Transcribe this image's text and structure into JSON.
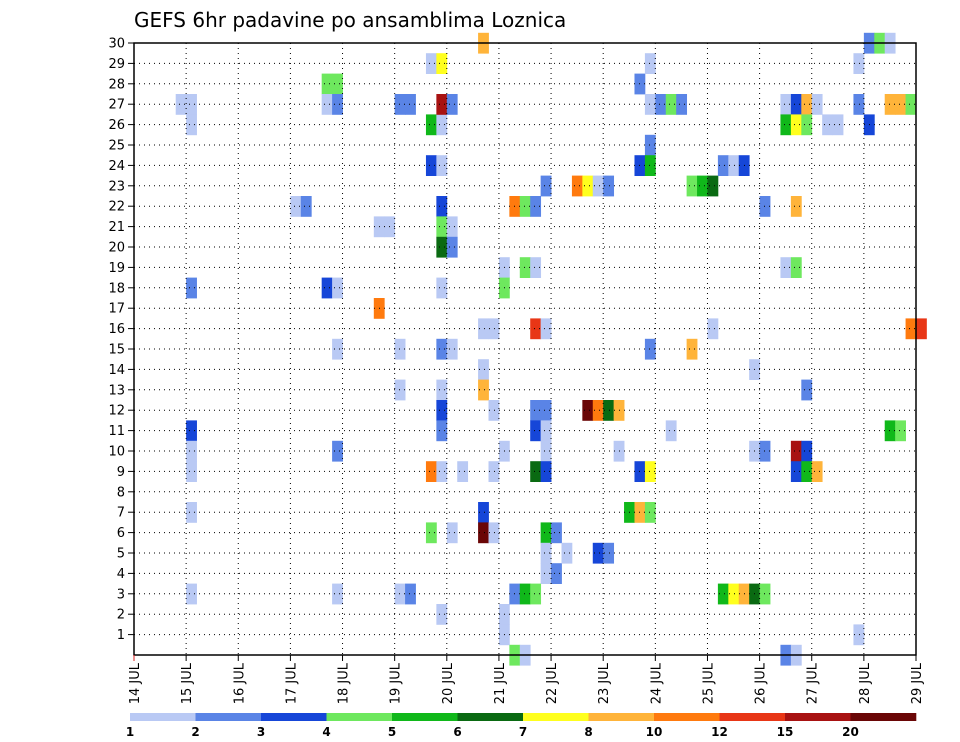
{
  "chart_data": {
    "type": "heatmap",
    "title": "GEFS 6hr padavine po ansamblima Loznica",
    "xlabel": "",
    "ylabel": "",
    "x_ticks": [
      "14 JUL",
      "15 JUL",
      "16 JUL",
      "17 JUL",
      "18 JUL",
      "19 JUL",
      "20 JUL",
      "21 JUL",
      "22 JUL",
      "23 JUL",
      "24 JUL",
      "25 JUL",
      "26 JUL",
      "27 JUL",
      "28 JUL",
      "29 JUL"
    ],
    "y_ticks": [
      "1",
      "2",
      "3",
      "4",
      "5",
      "6",
      "7",
      "8",
      "9",
      "10",
      "11",
      "12",
      "13",
      "14",
      "15",
      "16",
      "17",
      "18",
      "19",
      "20",
      "21",
      "22",
      "23",
      "24",
      "25",
      "26",
      "27",
      "28",
      "29",
      "30"
    ],
    "ylim": [
      0,
      30
    ],
    "grid": true,
    "legend_levels": [
      "1",
      "2",
      "3",
      "4",
      "5",
      "6",
      "7",
      "8",
      "10",
      "12",
      "15",
      "20"
    ],
    "legend_colors": [
      "#b9c9f4",
      "#5a84e6",
      "#1646d8",
      "#6ee85e",
      "#10b81a",
      "#0a6a12",
      "#ffff1e",
      "#ffb43a",
      "#ff7a0e",
      "#e83616",
      "#a81212",
      "#6a0606"
    ],
    "cells": [
      [
        0.8,
        27,
        1
      ],
      [
        1.0,
        27,
        1
      ],
      [
        1.0,
        26,
        1
      ],
      [
        1.0,
        18,
        2
      ],
      [
        1.0,
        11,
        3
      ],
      [
        1.0,
        10,
        1
      ],
      [
        1.0,
        9,
        1
      ],
      [
        1.0,
        7,
        1
      ],
      [
        1.0,
        3,
        1
      ],
      [
        3.0,
        22,
        1
      ],
      [
        3.2,
        22,
        2
      ],
      [
        3.6,
        28,
        4
      ],
      [
        3.8,
        28,
        4
      ],
      [
        3.6,
        27,
        1
      ],
      [
        3.8,
        27,
        2
      ],
      [
        3.6,
        18,
        3
      ],
      [
        3.8,
        18,
        1
      ],
      [
        3.8,
        15,
        1
      ],
      [
        3.8,
        10,
        2
      ],
      [
        3.8,
        3,
        1
      ],
      [
        4.6,
        21,
        1
      ],
      [
        4.8,
        21,
        1
      ],
      [
        4.6,
        17,
        9
      ],
      [
        5.0,
        27,
        2
      ],
      [
        5.2,
        27,
        2
      ],
      [
        5.0,
        15,
        1
      ],
      [
        5.0,
        13,
        1
      ],
      [
        5.0,
        3,
        1
      ],
      [
        5.2,
        3,
        2
      ],
      [
        5.6,
        29,
        1
      ],
      [
        5.8,
        29,
        7
      ],
      [
        5.6,
        26,
        5
      ],
      [
        5.8,
        26,
        1
      ],
      [
        5.6,
        24,
        3
      ],
      [
        5.8,
        24,
        1
      ],
      [
        5.8,
        27,
        11
      ],
      [
        6.0,
        27,
        2
      ],
      [
        5.8,
        22,
        3
      ],
      [
        5.8,
        21,
        4
      ],
      [
        6.0,
        21,
        1
      ],
      [
        5.8,
        20,
        6
      ],
      [
        6.0,
        20,
        2
      ],
      [
        5.8,
        18,
        1
      ],
      [
        5.8,
        15,
        2
      ],
      [
        6.0,
        15,
        1
      ],
      [
        5.8,
        13,
        1
      ],
      [
        5.8,
        12,
        3
      ],
      [
        5.8,
        11,
        2
      ],
      [
        5.6,
        9,
        9
      ],
      [
        5.8,
        9,
        1
      ],
      [
        6.2,
        9,
        1
      ],
      [
        5.6,
        6,
        4
      ],
      [
        6.0,
        6,
        1
      ],
      [
        5.8,
        2,
        1
      ],
      [
        6.6,
        30,
        8
      ],
      [
        6.6,
        16,
        1
      ],
      [
        6.8,
        16,
        1
      ],
      [
        6.6,
        14,
        1
      ],
      [
        6.6,
        13,
        8
      ],
      [
        6.6,
        7,
        3
      ],
      [
        6.6,
        6,
        12
      ],
      [
        6.8,
        6,
        1
      ],
      [
        7.0,
        19,
        1
      ],
      [
        7.0,
        18,
        4
      ],
      [
        6.8,
        12,
        1
      ],
      [
        7.0,
        10,
        1
      ],
      [
        6.8,
        9,
        1
      ],
      [
        7.0,
        2,
        1
      ],
      [
        7.0,
        1,
        1
      ],
      [
        7.2,
        0,
        4
      ],
      [
        7.4,
        0,
        1
      ],
      [
        7.2,
        22,
        9
      ],
      [
        7.4,
        22,
        4
      ],
      [
        7.6,
        22,
        2
      ],
      [
        7.4,
        19,
        4
      ],
      [
        7.6,
        19,
        1
      ],
      [
        7.6,
        16,
        10
      ],
      [
        7.8,
        16,
        1
      ],
      [
        7.6,
        12,
        2
      ],
      [
        7.8,
        12,
        2
      ],
      [
        7.6,
        11,
        3
      ],
      [
        7.8,
        11,
        1
      ],
      [
        7.8,
        10,
        1
      ],
      [
        7.6,
        9,
        6
      ],
      [
        7.8,
        9,
        3
      ],
      [
        7.8,
        6,
        5
      ],
      [
        8.0,
        6,
        2
      ],
      [
        7.8,
        5,
        1
      ],
      [
        7.8,
        4,
        1
      ],
      [
        8.0,
        4,
        2
      ],
      [
        7.2,
        3,
        2
      ],
      [
        7.4,
        3,
        5
      ],
      [
        7.6,
        3,
        4
      ],
      [
        7.8,
        23,
        2
      ],
      [
        8.2,
        5,
        1
      ],
      [
        8.4,
        23,
        9
      ],
      [
        8.6,
        23,
        7
      ],
      [
        8.8,
        23,
        1
      ],
      [
        9.0,
        23,
        2
      ],
      [
        8.6,
        12,
        12
      ],
      [
        8.8,
        12,
        9
      ],
      [
        9.0,
        12,
        6
      ],
      [
        9.2,
        12,
        8
      ],
      [
        8.8,
        5,
        3
      ],
      [
        9.0,
        5,
        2
      ],
      [
        9.2,
        10,
        1
      ],
      [
        9.4,
        7,
        5
      ],
      [
        9.6,
        7,
        8
      ],
      [
        9.8,
        7,
        4
      ],
      [
        9.6,
        28,
        2
      ],
      [
        9.8,
        29,
        1
      ],
      [
        9.8,
        27,
        1
      ],
      [
        10.0,
        27,
        2
      ],
      [
        10.2,
        27,
        4
      ],
      [
        10.4,
        27,
        2
      ],
      [
        9.8,
        25,
        2
      ],
      [
        9.6,
        24,
        3
      ],
      [
        9.8,
        24,
        5
      ],
      [
        9.8,
        15,
        2
      ],
      [
        10.2,
        11,
        1
      ],
      [
        9.6,
        9,
        3
      ],
      [
        9.8,
        9,
        7
      ],
      [
        10.6,
        23,
        4
      ],
      [
        10.8,
        23,
        5
      ],
      [
        11.0,
        23,
        6
      ],
      [
        10.6,
        15,
        8
      ],
      [
        11.0,
        16,
        1
      ],
      [
        11.2,
        24,
        2
      ],
      [
        11.4,
        24,
        1
      ],
      [
        11.6,
        24,
        3
      ],
      [
        11.2,
        3,
        5
      ],
      [
        11.4,
        3,
        7
      ],
      [
        11.6,
        3,
        8
      ],
      [
        11.8,
        3,
        6
      ],
      [
        12.0,
        3,
        4
      ],
      [
        11.8,
        14,
        1
      ],
      [
        12.0,
        22,
        2
      ],
      [
        11.8,
        10,
        1
      ],
      [
        12.0,
        10,
        2
      ],
      [
        12.4,
        27,
        1
      ],
      [
        12.6,
        27,
        3
      ],
      [
        12.8,
        27,
        8
      ],
      [
        13.0,
        27,
        1
      ],
      [
        12.4,
        26,
        5
      ],
      [
        12.6,
        26,
        7
      ],
      [
        12.8,
        26,
        4
      ],
      [
        12.4,
        19,
        1
      ],
      [
        12.6,
        19,
        4
      ],
      [
        12.6,
        22,
        8
      ],
      [
        12.8,
        13,
        2
      ],
      [
        12.6,
        10,
        11
      ],
      [
        12.8,
        10,
        3
      ],
      [
        12.6,
        9,
        3
      ],
      [
        12.8,
        9,
        5
      ],
      [
        13.0,
        9,
        8
      ],
      [
        12.4,
        0,
        2
      ],
      [
        12.6,
        0,
        1
      ],
      [
        13.2,
        26,
        1
      ],
      [
        13.4,
        26,
        1
      ],
      [
        13.8,
        27,
        2
      ],
      [
        13.8,
        29,
        1
      ],
      [
        13.8,
        1,
        1
      ],
      [
        14.0,
        26,
        3
      ],
      [
        14.0,
        30,
        2
      ],
      [
        14.2,
        30,
        4
      ],
      [
        14.4,
        30,
        1
      ],
      [
        14.4,
        27,
        8
      ],
      [
        14.6,
        27,
        8
      ],
      [
        14.8,
        27,
        4
      ],
      [
        14.8,
        16,
        9
      ],
      [
        15.0,
        16,
        10
      ],
      [
        14.4,
        11,
        5
      ],
      [
        14.6,
        11,
        4
      ]
    ]
  }
}
